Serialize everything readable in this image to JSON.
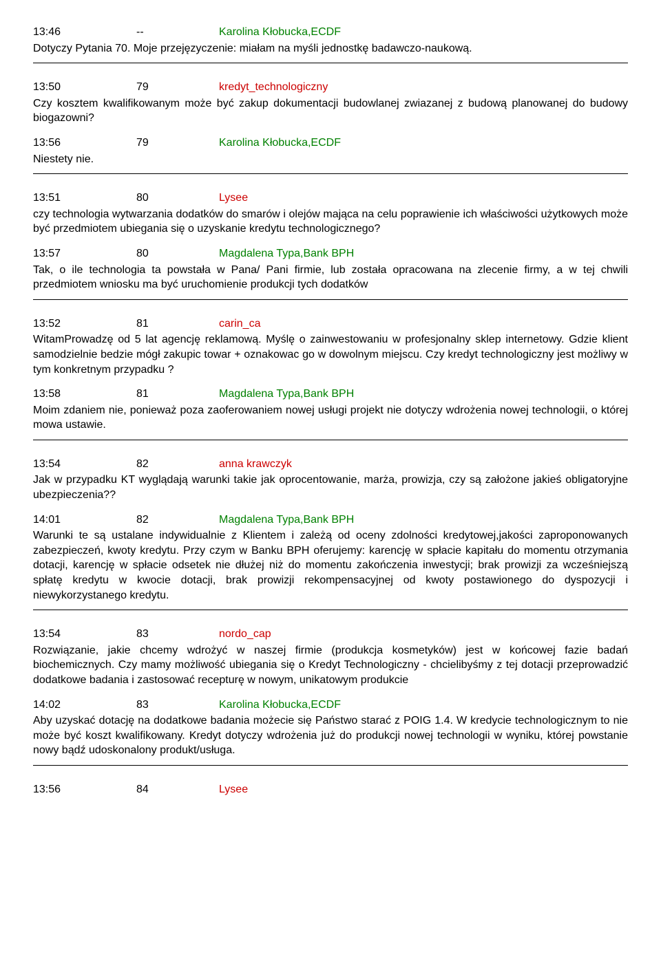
{
  "entries": [
    {
      "time": "13:46",
      "num": "--",
      "author": "Karolina Kłobucka,ECDF",
      "author_color": "green",
      "body": "Dotyczy Pytania 70. Moje przejęzyczenie: miałam na myśli jednostkę badawczo-naukową."
    },
    {
      "time": "13:50",
      "num": "79",
      "author": "kredyt_technologiczny",
      "author_color": "red",
      "body": "Czy kosztem kwalifikowanym może być zakup dokumentacji budowlanej zwiazanej z budową planowanej do budowy biogazowni?"
    },
    {
      "time": "13:56",
      "num": "79",
      "author": "Karolina Kłobucka,ECDF",
      "author_color": "green",
      "body": "Niestety nie."
    },
    {
      "time": "13:51",
      "num": "80",
      "author": "Lysee",
      "author_color": "red",
      "body": "czy technologia wytwarzania dodatków do smarów i olejów mająca na celu poprawienie ich właściwości użytkowych może być przedmiotem ubiegania się o uzyskanie kredytu technologicznego?"
    },
    {
      "time": "13:57",
      "num": "80",
      "author": "Magdalena Typa,Bank BPH",
      "author_color": "green",
      "body": "Tak, o ile technologia ta powstała w Pana/ Pani firmie, lub została opracowana na zlecenie firmy, a w tej chwili przedmiotem wniosku ma być uruchomienie produkcji tych dodatków"
    },
    {
      "time": "13:52",
      "num": "81",
      "author": "carin_ca",
      "author_color": "red",
      "body": "WitamProwadzę od 5 lat agencję reklamową. Myślę o zainwestowaniu w profesjonalny sklep internetowy. Gdzie klient samodzielnie bedzie mógł zakupic towar + oznakowac go w dowolnym miejscu. Czy kredyt technologiczny jest możliwy w tym konkretnym przypadku ?"
    },
    {
      "time": "13:58",
      "num": "81",
      "author": "Magdalena Typa,Bank BPH",
      "author_color": "green",
      "body": "Moim zdaniem nie, ponieważ poza zaoferowaniem nowej usługi projekt nie dotyczy wdrożenia nowej technologii, o której mowa ustawie."
    },
    {
      "time": "13:54",
      "num": "82",
      "author": "anna krawczyk",
      "author_color": "red",
      "body": "Jak w przypadku KT wyglądają warunki takie jak oprocentowanie, marża, prowizja, czy są założone jakieś obligatoryjne ubezpieczenia??"
    },
    {
      "time": "14:01",
      "num": "82",
      "author": "Magdalena Typa,Bank BPH",
      "author_color": "green",
      "body": "Warunki te są ustalane indywidualnie z Klientem i zależą od oceny zdolności kredytowej,jakości zaproponowanych zabezpieczeń, kwoty kredytu. Przy czym w Banku BPH oferujemy: karencję w spłacie kapitału do momentu otrzymania dotacji, karencję w spłacie odsetek nie dłużej niż do momentu zakończenia inwestycji; brak prowizji za wcześniejszą spłatę kredytu w kwocie dotacji, brak prowizji rekompensacyjnej od kwoty postawionego do dyspozycji i niewykorzystanego kredytu."
    },
    {
      "time": "13:54",
      "num": "83",
      "author": "nordo_cap",
      "author_color": "red",
      "body": "Rozwiązanie, jakie chcemy wdrożyć w naszej firmie (produkcja kosmetyków) jest w końcowej fazie badań biochemicznych. Czy mamy możliwość ubiegania się o Kredyt Technologiczny - chcielibyśmy z tej dotacji przeprowadzić dodatkowe badania i zastosować recepturę w nowym, unikatowym produkcie"
    },
    {
      "time": "14:02",
      "num": "83",
      "author": "Karolina Kłobucka,ECDF",
      "author_color": "green",
      "body": "Aby uzyskać dotację na dodatkowe badania możecie się Państwo starać z POIG 1.4. W kredycie technologicznym to nie może być koszt kwalifikowany. Kredyt dotyczy wdrożenia już do produkcji nowej technologii w wyniku, której powstanie nowy bądź udoskonalony produkt/usługa."
    },
    {
      "time": "13:56",
      "num": "84",
      "author": "Lysee",
      "author_color": "red",
      "body": ""
    }
  ],
  "groups": [
    {
      "indices": [
        0
      ],
      "hr_after": true
    },
    {
      "indices": [
        1,
        2
      ],
      "hr_after": true
    },
    {
      "indices": [
        3,
        4
      ],
      "hr_after": true
    },
    {
      "indices": [
        5,
        6
      ],
      "hr_after": true
    },
    {
      "indices": [
        7,
        8
      ],
      "hr_after": true
    },
    {
      "indices": [
        9,
        10
      ],
      "hr_after": true
    },
    {
      "indices": [
        11
      ],
      "hr_after": false
    }
  ]
}
